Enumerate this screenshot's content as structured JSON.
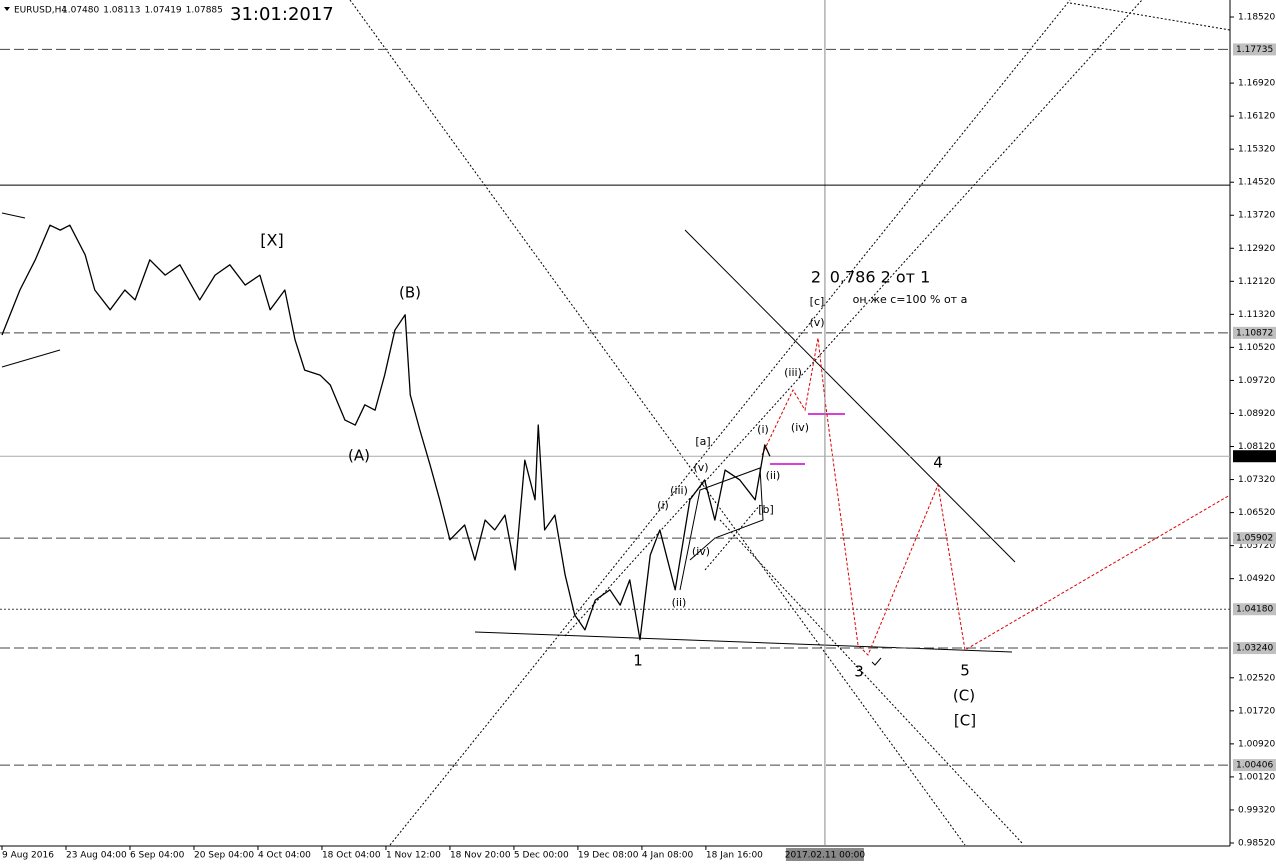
{
  "chart_data": {
    "type": "line",
    "title": "EURUSD,H4",
    "ohlc": [
      {
        "value": 1.0748,
        "label": "1.07480"
      },
      {
        "value": 1.08113,
        "label": "1.08113"
      },
      {
        "value": 1.07419,
        "label": "1.07419"
      },
      {
        "value": 1.07885,
        "label": "1.07885"
      }
    ],
    "date_stamp": "31:01:2017",
    "xlim": [
      0,
      19.19
    ],
    "ylim": [
      0.98447,
      1.18932
    ],
    "xticks": [
      {
        "value": 0,
        "label": "9 Aug 2016"
      },
      {
        "value": 1,
        "label": "23 Aug 04:00"
      },
      {
        "value": 2,
        "label": "6 Sep 04:00"
      },
      {
        "value": 3,
        "label": "20 Sep 04:00"
      },
      {
        "value": 4,
        "label": "4 Oct 04:00"
      },
      {
        "value": 5,
        "label": "18 Oct 04:00"
      },
      {
        "value": 6,
        "label": "1 Nov 12:00"
      },
      {
        "value": 7,
        "label": "18 Nov 20:00"
      },
      {
        "value": 8,
        "label": "5 Dec 00:00"
      },
      {
        "value": 9,
        "label": "19 Dec 08:00"
      },
      {
        "value": 10,
        "label": "4 Jan 08:00"
      },
      {
        "value": 11,
        "label": "18 Jan 16:00"
      }
    ],
    "crosshair": {
      "value": 12.86,
      "label": "2017.02.11 00:00"
    },
    "yticks": [
      {
        "value": 1.1852,
        "label": "1.18520"
      },
      {
        "value": 1.1692,
        "label": "1.16920"
      },
      {
        "value": 1.1612,
        "label": "1.16120"
      },
      {
        "value": 1.1532,
        "label": "1.15320"
      },
      {
        "value": 1.1452,
        "label": "1.14520"
      },
      {
        "value": 1.1372,
        "label": "1.13720"
      },
      {
        "value": 1.1292,
        "label": "1.12920"
      },
      {
        "value": 1.1212,
        "label": "1.12120"
      },
      {
        "value": 1.1132,
        "label": "1.11320"
      },
      {
        "value": 1.1052,
        "label": "1.10520"
      },
      {
        "value": 1.0972,
        "label": "1.09720"
      },
      {
        "value": 1.0892,
        "label": "1.08920"
      },
      {
        "value": 1.0812,
        "label": "1.08120"
      },
      {
        "value": 1.0732,
        "label": "1.07320"
      },
      {
        "value": 1.0652,
        "label": "1.06520"
      },
      {
        "value": 1.0572,
        "label": "1.05720"
      },
      {
        "value": 1.0492,
        "label": "1.04920"
      },
      {
        "value": 1.0252,
        "label": "1.02520"
      },
      {
        "value": 1.0172,
        "label": "1.01720"
      },
      {
        "value": 1.0092,
        "label": "1.00920"
      },
      {
        "value": 1.0012,
        "label": "1.00120"
      },
      {
        "value": 0.9932,
        "label": "0.99320"
      },
      {
        "value": 0.9852,
        "label": "0.98520"
      }
    ],
    "levels": [
      {
        "value": 1.17735,
        "label": "1.17735",
        "style": "dashed"
      },
      {
        "value": 1.1445,
        "style": "solid"
      },
      {
        "value": 1.10872,
        "label": "1.10872",
        "style": "dashed"
      },
      {
        "value": 1.07885,
        "label": "1.07885",
        "style": "current"
      },
      {
        "value": 1.05902,
        "label": "1.05902",
        "style": "dashed"
      },
      {
        "value": 1.0418,
        "label": "1.04180",
        "style": "dotted"
      },
      {
        "value": 1.0324,
        "label": "1.03240",
        "style": "dashed"
      },
      {
        "value": 1.00406,
        "label": "1.00406",
        "style": "dashed"
      }
    ],
    "series": [
      {
        "name": "EURUSD",
        "color": "#000000",
        "x": [
          0,
          0.28,
          0.52,
          0.75,
          0.91,
          1.06,
          1.3,
          1.45,
          1.69,
          1.92,
          2.08,
          2.31,
          2.55,
          2.78,
          3.09,
          3.33,
          3.56,
          3.8,
          4.03,
          4.19,
          4.42,
          4.58,
          4.73,
          4.97,
          5.13,
          5.36,
          5.52,
          5.67,
          5.83,
          5.98,
          6.14,
          6.3,
          6.38,
          6.53,
          6.69,
          6.84,
          7,
          7.23,
          7.39,
          7.55,
          7.7,
          7.86,
          8.02,
          8.17,
          8.33,
          8.38,
          8.48,
          8.64,
          8.8,
          8.95,
          9.11,
          9.27,
          9.5,
          9.66,
          9.81,
          9.97,
          10.13,
          10.28,
          10.52,
          10.75,
          10.98,
          11.14,
          11.3,
          11.53,
          11.77,
          11.92,
          12
        ],
        "values": [
          1.1082,
          1.1191,
          1.1264,
          1.1348,
          1.1336,
          1.1348,
          1.1276,
          1.1191,
          1.1143,
          1.1191,
          1.1167,
          1.1264,
          1.1227,
          1.1252,
          1.1167,
          1.1227,
          1.1252,
          1.1203,
          1.1227,
          1.1143,
          1.1191,
          1.107,
          1.0997,
          1.0985,
          1.0961,
          1.0876,
          1.0864,
          1.0913,
          1.09,
          1.0985,
          1.1094,
          1.1131,
          1.0937,
          1.0852,
          1.0767,
          1.0683,
          1.0586,
          1.0622,
          1.0537,
          1.0634,
          1.061,
          1.0646,
          1.0513,
          1.0779,
          1.0683,
          1.0864,
          1.061,
          1.0646,
          1.0501,
          1.0404,
          1.0368,
          1.044,
          1.0465,
          1.0428,
          1.0489,
          1.0344,
          1.0549,
          1.061,
          1.0465,
          1.0683,
          1.0731,
          1.0634,
          1.0755,
          1.0731,
          1.0683,
          1.0816,
          1.07885
        ]
      }
    ],
    "annotations": [
      {
        "text": "[X]",
        "color": "#e00000"
      },
      {
        "text": "(B)",
        "color": "#2a8a2a"
      },
      {
        "text": "(A)",
        "color": "#2a8a2a"
      },
      {
        "text": "2",
        "color": "#1a1acd"
      },
      {
        "text": "0.786 2 от 1",
        "color": "#1a1acd"
      },
      {
        "text": "[c]",
        "color": "#e00000"
      },
      {
        "text": "он же с=100 % от а",
        "color": "#e00000"
      },
      {
        "text": "(v)",
        "color": "#2a8a2a"
      },
      {
        "text": "(iii)",
        "color": "#2a8a2a"
      },
      {
        "text": "(iv)",
        "color": "#2a8a2a"
      },
      {
        "text": "(i)",
        "color": "#2a8a2a"
      },
      {
        "text": "(ii)",
        "color": "#2a8a2a"
      },
      {
        "text": "[a]",
        "color": "#e00000"
      },
      {
        "text": "(v)",
        "color": "#2a8a2a"
      },
      {
        "text": "(iii)",
        "color": "#2a8a2a"
      },
      {
        "text": "(i)",
        "color": "#2a8a2a"
      },
      {
        "text": "(iv)",
        "color": "#2a8a2a"
      },
      {
        "text": "(ii)",
        "color": "#2a8a2a"
      },
      {
        "text": "[b]",
        "color": "#e00000"
      },
      {
        "text": "1",
        "color": "#1a1acd"
      },
      {
        "text": "3",
        "color": "#1a1acd"
      },
      {
        "text": "4",
        "color": "#1a1acd"
      },
      {
        "text": "5",
        "color": "#1a1acd"
      },
      {
        "text": "(C)",
        "color": "#2a8a2a"
      },
      {
        "text": "[C]",
        "color": "#e00000"
      }
    ]
  }
}
